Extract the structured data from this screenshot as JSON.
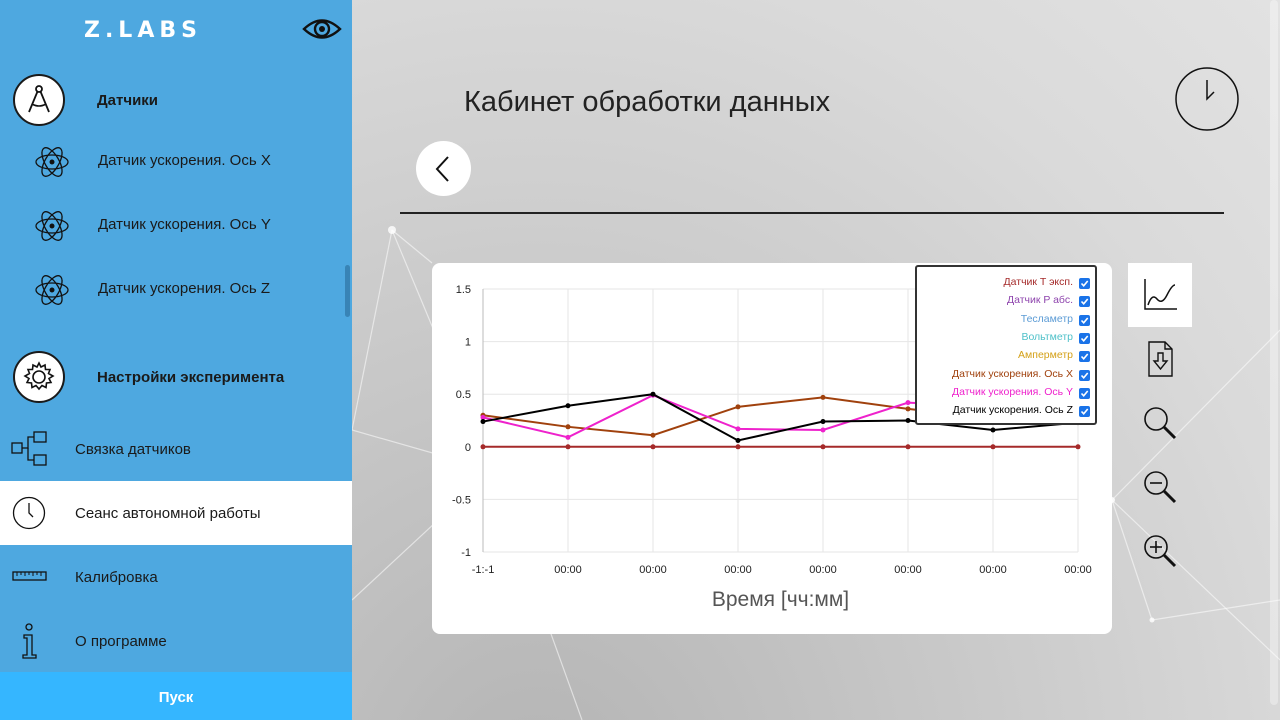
{
  "brand": "Z.LABS",
  "sidebar": {
    "sections": [
      {
        "label": "Датчики",
        "icon": "compass-icon"
      },
      {
        "label": "Настройки эксперимента",
        "icon": "gear-icon"
      }
    ],
    "sensors": [
      {
        "label": "Датчик ускорения. Ось X",
        "icon": "atom-icon"
      },
      {
        "label": "Датчик ускорения. Ось Y",
        "icon": "atom-icon"
      },
      {
        "label": "Датчик ускорения. Ось Z",
        "icon": "atom-icon"
      }
    ],
    "menu": [
      {
        "label": "Связка датчиков",
        "icon": "link-sensors-icon"
      },
      {
        "label": "Сеанс автономной работы",
        "icon": "clock-icon",
        "active": true
      },
      {
        "label": "Калибровка",
        "icon": "ruler-icon"
      },
      {
        "label": "О программе",
        "icon": "info-icon"
      }
    ],
    "start_label": "Пуск"
  },
  "main": {
    "title": "Кабинет обработки данных"
  },
  "colors": {
    "sidebar": "#4ea8e0",
    "start_button": "#35b6ff",
    "checkbox": "#1a73e8"
  },
  "toolbar": [
    {
      "icon": "line-chart-icon",
      "active": true
    },
    {
      "icon": "file-download-icon"
    },
    {
      "icon": "magnifier-icon"
    },
    {
      "icon": "zoom-out-icon"
    },
    {
      "icon": "zoom-in-icon"
    }
  ],
  "chart_data": {
    "type": "line",
    "title": "",
    "xlabel": "Время [чч:мм]",
    "ylabel": "",
    "categories": [
      "-1:-1",
      "00:00",
      "00:00",
      "00:00",
      "00:00",
      "00:00",
      "00:00",
      "00:00"
    ],
    "y_ticks": [
      1.5,
      1,
      0.5,
      0,
      -0.5,
      -1
    ],
    "ylim": [
      -1,
      1.5
    ],
    "grid": true,
    "legend_position": "top-right",
    "series": [
      {
        "name": "Датчик T эксп.",
        "color": "#a52a2a",
        "checked": true,
        "values": [
          0,
          0,
          0,
          0,
          0,
          0,
          0,
          0
        ]
      },
      {
        "name": "Датчик P абс.",
        "color": "#8e44ad",
        "checked": true,
        "values": null
      },
      {
        "name": "Тесламетр",
        "color": "#5b9bd5",
        "checked": true,
        "values": null
      },
      {
        "name": "Вольтметр",
        "color": "#4fc1c9",
        "checked": true,
        "values": null
      },
      {
        "name": "Амперметр",
        "color": "#d4a017",
        "checked": true,
        "values": null
      },
      {
        "name": "Датчик ускорения. Ось X",
        "color": "#a0410d",
        "checked": true,
        "values": [
          0.3,
          0.19,
          0.11,
          0.38,
          0.47,
          0.36,
          0.27,
          0.23
        ]
      },
      {
        "name": "Датчик ускорения. Ось Y",
        "color": "#ee22cc",
        "checked": true,
        "values": [
          0.28,
          0.09,
          0.49,
          0.17,
          0.16,
          0.42,
          0.38,
          0.32
        ]
      },
      {
        "name": "Датчик ускорения. Ось Z",
        "color": "#000000",
        "checked": true,
        "values": [
          0.24,
          0.39,
          0.5,
          0.06,
          0.24,
          0.25,
          0.16,
          0.23
        ]
      }
    ]
  }
}
